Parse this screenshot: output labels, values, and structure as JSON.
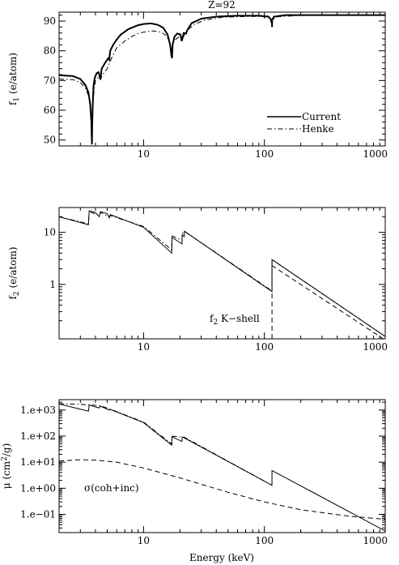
{
  "figure": {
    "title": "Z=92",
    "xlabel": "Energy (keV)"
  },
  "chart_data": [
    {
      "type": "line",
      "title": "Z=92",
      "xlabel": "",
      "ylabel": "f1 (e/atom)",
      "ylabel_main": "f",
      "ylabel_sub": "1",
      "ylabel_rest": " (e/atom)",
      "xscale": "log",
      "yscale": "linear",
      "xlim": [
        2,
        1000
      ],
      "ylim": [
        48,
        93
      ],
      "x_ticks": [
        10,
        100,
        1000
      ],
      "x_tick_labels": [
        "10",
        "100",
        "1000"
      ],
      "y_ticks": [
        50,
        60,
        70,
        80,
        90
      ],
      "y_tick_labels": [
        "50",
        "60",
        "70",
        "80",
        "90"
      ],
      "legend": {
        "position": "middle-right",
        "entries": [
          "Current",
          "Henke"
        ]
      },
      "series": [
        {
          "name": "Current",
          "style": "solid-thick",
          "points": [
            [
              2,
              71.8
            ],
            [
              2.6,
              71.5
            ],
            [
              3.0,
              70.5
            ],
            [
              3.3,
              68.5
            ],
            [
              3.5,
              66
            ],
            [
              3.62,
              62
            ],
            [
              3.7,
              56
            ],
            [
              3.73,
              50
            ],
            [
              3.74,
              48.5
            ],
            [
              3.76,
              55
            ],
            [
              3.8,
              62
            ],
            [
              3.85,
              68
            ],
            [
              3.95,
              71
            ],
            [
              4.1,
              72.5
            ],
            [
              4.25,
              72.8
            ],
            [
              4.35,
              71
            ],
            [
              4.4,
              70.3
            ],
            [
              4.5,
              74
            ],
            [
              4.9,
              76.5
            ],
            [
              5.1,
              77.5
            ],
            [
              5.2,
              77
            ],
            [
              5.3,
              80
            ],
            [
              5.6,
              82
            ],
            [
              6,
              83.8
            ],
            [
              6.5,
              85.5
            ],
            [
              7.5,
              87.3
            ],
            [
              9,
              88.6
            ],
            [
              10,
              89
            ],
            [
              11.5,
              89.2
            ],
            [
              13,
              88.8
            ],
            [
              14.5,
              87.8
            ],
            [
              15.8,
              85.5
            ],
            [
              16.6,
              82
            ],
            [
              17.0,
              78.5
            ],
            [
              17.2,
              77.5
            ],
            [
              17.4,
              82
            ],
            [
              18,
              84.7
            ],
            [
              19,
              85.8
            ],
            [
              20.2,
              85.5
            ],
            [
              20.7,
              83.3
            ],
            [
              20.95,
              84
            ],
            [
              21.5,
              86
            ],
            [
              22.5,
              85.8
            ],
            [
              23,
              87
            ],
            [
              25,
              89.3
            ],
            [
              30,
              90.8
            ],
            [
              40,
              91.5
            ],
            [
              60,
              91.8
            ],
            [
              90,
              91.8
            ],
            [
              108,
              91.5
            ],
            [
              113,
              90.5
            ],
            [
              115.6,
              89
            ],
            [
              115.7,
              88
            ],
            [
              116,
              90.5
            ],
            [
              120,
              91.5
            ],
            [
              150,
              92
            ],
            [
              300,
              92
            ],
            [
              1000,
              92
            ]
          ]
        },
        {
          "name": "Henke",
          "style": "dash-dot",
          "points": [
            [
              2,
              70.5
            ],
            [
              2.6,
              70.3
            ],
            [
              3.0,
              69.3
            ],
            [
              3.3,
              67.5
            ],
            [
              3.5,
              65
            ],
            [
              3.62,
              61
            ],
            [
              3.7,
              56
            ],
            [
              3.73,
              51
            ],
            [
              3.76,
              56
            ],
            [
              3.8,
              62
            ],
            [
              3.9,
              67
            ],
            [
              4.0,
              70
            ],
            [
              4.3,
              71.3
            ],
            [
              4.4,
              70.5
            ],
            [
              4.6,
              72
            ],
            [
              5,
              74
            ],
            [
              5.5,
              78
            ],
            [
              6,
              81
            ],
            [
              7,
              83.3
            ],
            [
              8,
              84.8
            ],
            [
              9,
              85.8
            ],
            [
              10,
              86.3
            ],
            [
              12,
              86.7
            ],
            [
              14,
              86.3
            ],
            [
              15.5,
              85
            ],
            [
              16.5,
              82.5
            ],
            [
              17.0,
              80
            ],
            [
              17.3,
              81.5
            ],
            [
              18,
              83.5
            ],
            [
              19.5,
              84.6
            ],
            [
              20.8,
              83.5
            ],
            [
              21.2,
              84.5
            ],
            [
              23,
              86.8
            ],
            [
              26,
              88.8
            ],
            [
              32,
              90.3
            ],
            [
              45,
              91.3
            ],
            [
              80,
              91.6
            ],
            [
              110,
              91.4
            ],
            [
              115.5,
              89.5
            ],
            [
              116.2,
              90.5
            ],
            [
              130,
              91.5
            ],
            [
              200,
              91.9
            ],
            [
              1000,
              92
            ]
          ]
        }
      ]
    },
    {
      "type": "line",
      "title": "",
      "xlabel": "",
      "ylabel": "f2 (e/atom)",
      "ylabel_main": "f",
      "ylabel_sub": "2",
      "ylabel_rest": " (e/atom)",
      "xscale": "log",
      "yscale": "log",
      "xlim": [
        2,
        1000
      ],
      "ylim": [
        0.09,
        30
      ],
      "x_ticks": [
        10,
        100,
        1000
      ],
      "x_tick_labels": [
        "10",
        "100",
        "1000"
      ],
      "y_ticks": [
        1,
        10
      ],
      "y_tick_labels": [
        "1",
        "10"
      ],
      "annotation": "f2 K−shell",
      "annotation_main": "f",
      "annotation_sub": "2",
      "annotation_rest": " K−shell",
      "series": [
        {
          "style": "solid",
          "points": [
            [
              2,
              20
            ],
            [
              3.5,
              14
            ],
            [
              3.55,
              26
            ],
            [
              4.0,
              24
            ],
            [
              4.3,
              20
            ],
            [
              4.4,
              25
            ],
            [
              5,
              23
            ],
            [
              5.2,
              19
            ],
            [
              5.3,
              22
            ],
            [
              10,
              12.5
            ],
            [
              17.1,
              4.0
            ],
            [
              17.2,
              8
            ],
            [
              20.8,
              6
            ],
            [
              20.9,
              9
            ],
            [
              21.7,
              8.3
            ],
            [
              21.8,
              10.5
            ],
            [
              115.5,
              0.73
            ],
            [
              115.6,
              3.0
            ],
            [
              1000,
              0.1
            ]
          ]
        },
        {
          "style": "dash-dot",
          "points": [
            [
              2,
              20
            ],
            [
              3.5,
              14.5
            ],
            [
              3.55,
              25
            ],
            [
              4.3,
              21
            ],
            [
              4.4,
              24
            ],
            [
              5.2,
              20
            ],
            [
              5.3,
              21
            ],
            [
              10,
              13
            ],
            [
              17.1,
              4.6
            ],
            [
              17.2,
              8.5
            ],
            [
              20.8,
              7
            ],
            [
              20.9,
              9.5
            ],
            [
              21.8,
              10.5
            ],
            [
              115.5,
              0.75
            ],
            [
              115.6,
              3.0
            ],
            [
              1000,
              0.1
            ]
          ]
        },
        {
          "style": "dashed",
          "points": [
            [
              115.6,
              0.09
            ],
            [
              115.6,
              2.3
            ],
            [
              1000,
              0.085
            ]
          ]
        }
      ]
    },
    {
      "type": "line",
      "title": "",
      "xlabel": "Energy (keV)",
      "ylabel": "μ (cm2/g)",
      "ylabel_main": "μ (cm",
      "ylabel_sup": "2",
      "ylabel_rest": "/g)",
      "xscale": "log",
      "yscale": "log",
      "xlim": [
        2,
        1000
      ],
      "ylim": [
        0.02,
        2500
      ],
      "x_ticks": [
        10,
        100,
        1000
      ],
      "x_tick_labels": [
        "10",
        "100",
        "1000"
      ],
      "y_ticks": [
        0.1,
        1,
        10,
        100,
        1000
      ],
      "y_tick_labels": [
        "1.e−01",
        "1.e+00",
        "1.e+01",
        "1.e+02",
        "1.e+03"
      ],
      "annotation": "σ(coh+inc)",
      "series": [
        {
          "style": "solid",
          "points": [
            [
              2,
              1700
            ],
            [
              3.5,
              900
            ],
            [
              3.55,
              1550
            ],
            [
              4.3,
              1200
            ],
            [
              4.4,
              1400
            ],
            [
              5.2,
              1000
            ],
            [
              5.3,
              1050
            ],
            [
              10,
              330
            ],
            [
              17.1,
              45
            ],
            [
              17.2,
              95
            ],
            [
              20.8,
              62
            ],
            [
              20.9,
              92
            ],
            [
              21.8,
              85
            ],
            [
              115.5,
              1.3
            ],
            [
              115.6,
              4.8
            ],
            [
              1000,
              0.023
            ]
          ]
        },
        {
          "style": "dash-dot",
          "points": [
            [
              2,
              1750
            ],
            [
              3.55,
              1600
            ],
            [
              4.4,
              1450
            ],
            [
              5.3,
              1080
            ],
            [
              10,
              345
            ],
            [
              17.1,
              50
            ],
            [
              17.2,
              100
            ],
            [
              21.8,
              90
            ],
            [
              115.5,
              1.3
            ]
          ]
        },
        {
          "style": "dashed",
          "points": [
            [
              2,
              11
            ],
            [
              3,
              12.5
            ],
            [
              4,
              12
            ],
            [
              6,
              10
            ],
            [
              10,
              6
            ],
            [
              20,
              2.5
            ],
            [
              50,
              0.7
            ],
            [
              100,
              0.3
            ],
            [
              200,
              0.15
            ],
            [
              500,
              0.085
            ],
            [
              1000,
              0.065
            ]
          ]
        }
      ]
    }
  ]
}
